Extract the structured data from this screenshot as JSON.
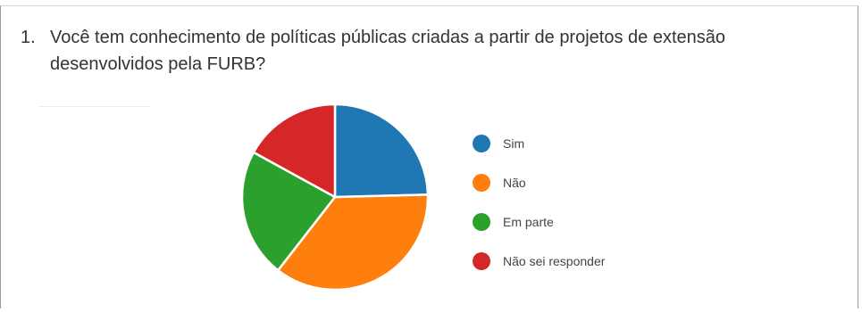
{
  "question": {
    "number": "1.",
    "text": "Você tem conhecimento de políticas públicas criadas a partir de projetos de extensão desenvolvidos pela FURB?"
  },
  "chart_data": {
    "type": "pie",
    "categories": [
      "Sim",
      "Não",
      "Em parte",
      "Não sei responder"
    ],
    "values": [
      24.6,
      35.9,
      22.5,
      17.0
    ],
    "colors": [
      "#1f77b4",
      "#ff7f0e",
      "#2ca02c",
      "#d62728"
    ],
    "slice_border_color": "#ffffff",
    "start_angle_deg": 0,
    "direction": "clockwise",
    "legend_position": "right"
  }
}
